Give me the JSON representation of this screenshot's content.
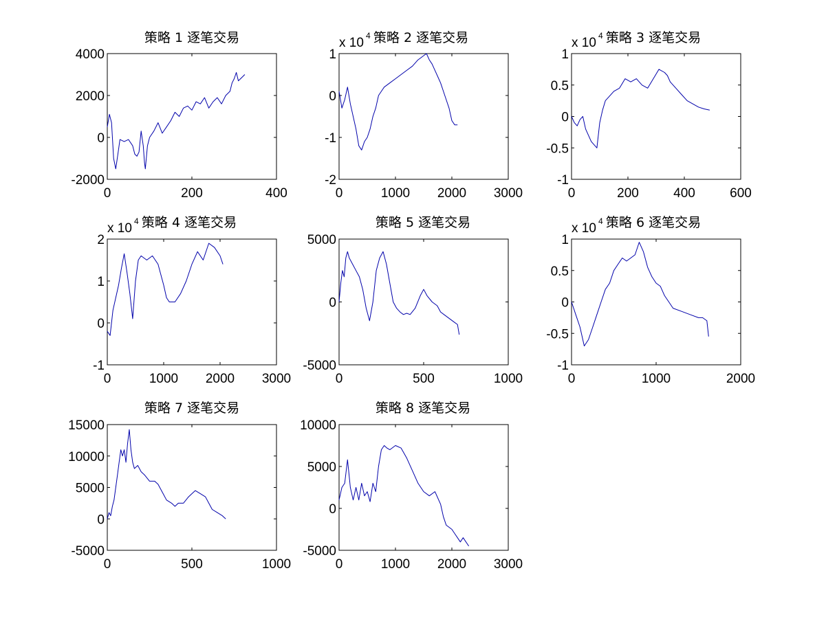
{
  "figure": {
    "background": "#ffffff"
  },
  "chart_data": [
    {
      "type": "line",
      "title": "策略 1 逐笔交易",
      "xlim": [
        0,
        400
      ],
      "ylim": [
        -2000,
        4000
      ],
      "xticks": [
        0,
        200,
        400
      ],
      "yticks": [
        -2000,
        0,
        2000,
        4000
      ],
      "xticklabels": [
        "0",
        "200",
        "400"
      ],
      "yticklabels": [
        "-2000",
        "0",
        "2000",
        "4000"
      ],
      "exponent": "",
      "color": "#0000aa",
      "series": [
        {
          "x": [
            0,
            5,
            10,
            15,
            20,
            25,
            30,
            40,
            50,
            60,
            65,
            70,
            75,
            80,
            85,
            88,
            90,
            95,
            100,
            110,
            120,
            130,
            140,
            150,
            160,
            170,
            180,
            190,
            200,
            210,
            220,
            230,
            240,
            250,
            260,
            270,
            280,
            290,
            295,
            300,
            305,
            310,
            315,
            320,
            325
          ],
          "y": [
            500,
            1100,
            700,
            -1000,
            -1500,
            -800,
            -100,
            -200,
            -100,
            -400,
            -800,
            -900,
            -700,
            300,
            -400,
            -1200,
            -1500,
            -400,
            0,
            300,
            700,
            200,
            500,
            800,
            1200,
            1000,
            1400,
            1500,
            1300,
            1700,
            1600,
            1900,
            1400,
            1700,
            1900,
            1600,
            2000,
            2200,
            2600,
            2800,
            3100,
            2700,
            2800,
            2900,
            3000
          ]
        }
      ]
    },
    {
      "type": "line",
      "title": "策略 2 逐笔交易",
      "xlim": [
        0,
        3000
      ],
      "ylim": [
        -2,
        1
      ],
      "xticks": [
        0,
        1000,
        2000,
        3000
      ],
      "yticks": [
        -2,
        -1,
        0,
        1
      ],
      "xticklabels": [
        "0",
        "1000",
        "2000",
        "3000"
      ],
      "yticklabels": [
        "-2",
        "-1",
        "0",
        "1"
      ],
      "exponent": "4",
      "color": "#0000aa",
      "series": [
        {
          "x": [
            0,
            50,
            100,
            150,
            200,
            250,
            300,
            350,
            400,
            450,
            500,
            550,
            600,
            650,
            700,
            750,
            800,
            900,
            1000,
            1100,
            1200,
            1300,
            1400,
            1450,
            1500,
            1550,
            1600,
            1650,
            1700,
            1750,
            1800,
            1850,
            1900,
            1950,
            2000,
            2050,
            2100
          ],
          "y": [
            0.1,
            -0.3,
            -0.1,
            0.2,
            -0.2,
            -0.5,
            -0.8,
            -1.2,
            -1.3,
            -1.1,
            -1.0,
            -0.8,
            -0.5,
            -0.3,
            0.0,
            0.1,
            0.2,
            0.3,
            0.4,
            0.5,
            0.6,
            0.7,
            0.85,
            0.9,
            0.95,
            1.0,
            0.85,
            0.75,
            0.6,
            0.45,
            0.3,
            0.1,
            -0.1,
            -0.3,
            -0.6,
            -0.7,
            -0.7
          ]
        }
      ]
    },
    {
      "type": "line",
      "title": "策略 3 逐笔交易",
      "xlim": [
        0,
        600
      ],
      "ylim": [
        -1,
        1
      ],
      "xticks": [
        0,
        200,
        400,
        600
      ],
      "yticks": [
        -1,
        -0.5,
        0,
        0.5,
        1
      ],
      "xticklabels": [
        "0",
        "200",
        "400",
        "600"
      ],
      "yticklabels": [
        "-1",
        "-0.5",
        "0",
        "0.5",
        "1"
      ],
      "exponent": "4",
      "color": "#0000aa",
      "series": [
        {
          "x": [
            0,
            10,
            20,
            30,
            40,
            50,
            60,
            70,
            80,
            90,
            100,
            110,
            120,
            130,
            150,
            170,
            190,
            210,
            230,
            250,
            270,
            290,
            310,
            330,
            340,
            350,
            370,
            390,
            410,
            430,
            450,
            470,
            490
          ],
          "y": [
            0.0,
            -0.1,
            -0.15,
            -0.05,
            0.0,
            -0.2,
            -0.3,
            -0.4,
            -0.45,
            -0.5,
            -0.1,
            0.1,
            0.25,
            0.3,
            0.4,
            0.45,
            0.6,
            0.55,
            0.6,
            0.5,
            0.45,
            0.6,
            0.75,
            0.7,
            0.65,
            0.55,
            0.45,
            0.35,
            0.25,
            0.2,
            0.15,
            0.12,
            0.1
          ]
        }
      ]
    },
    {
      "type": "line",
      "title": "策略 4 逐笔交易",
      "xlim": [
        0,
        3000
      ],
      "ylim": [
        -1,
        2
      ],
      "xticks": [
        0,
        1000,
        2000,
        3000
      ],
      "yticks": [
        -1,
        0,
        1,
        2
      ],
      "xticklabels": [
        "0",
        "1000",
        "2000",
        "3000"
      ],
      "yticklabels": [
        "-1",
        "0",
        "1",
        "2"
      ],
      "exponent": "4",
      "color": "#0000aa",
      "series": [
        {
          "x": [
            0,
            50,
            100,
            150,
            200,
            250,
            300,
            350,
            400,
            450,
            500,
            550,
            600,
            650,
            700,
            800,
            900,
            1000,
            1050,
            1100,
            1200,
            1300,
            1400,
            1500,
            1600,
            1700,
            1800,
            1900,
            2000,
            2050
          ],
          "y": [
            -0.2,
            -0.3,
            0.3,
            0.6,
            0.9,
            1.3,
            1.65,
            1.2,
            0.7,
            0.1,
            1.0,
            1.5,
            1.6,
            1.55,
            1.5,
            1.6,
            1.4,
            0.9,
            0.6,
            0.5,
            0.5,
            0.7,
            1.0,
            1.4,
            1.7,
            1.5,
            1.9,
            1.8,
            1.6,
            1.4
          ]
        }
      ]
    },
    {
      "type": "line",
      "title": "策略 5 逐笔交易",
      "xlim": [
        0,
        1000
      ],
      "ylim": [
        -5000,
        5000
      ],
      "xticks": [
        0,
        500,
        1000
      ],
      "yticks": [
        -5000,
        0,
        5000
      ],
      "xticklabels": [
        "0",
        "500",
        "1000"
      ],
      "yticklabels": [
        "-5000",
        "0",
        "5000"
      ],
      "exponent": "",
      "color": "#0000aa",
      "series": [
        {
          "x": [
            0,
            10,
            20,
            30,
            40,
            50,
            60,
            80,
            100,
            120,
            140,
            160,
            180,
            200,
            220,
            240,
            260,
            280,
            300,
            320,
            340,
            360,
            380,
            400,
            420,
            450,
            480,
            500,
            520,
            550,
            580,
            600,
            620,
            650,
            680,
            700,
            710
          ],
          "y": [
            0,
            1500,
            2500,
            2000,
            3500,
            4000,
            3500,
            3000,
            2500,
            2000,
            1000,
            -500,
            -1500,
            0,
            2500,
            3500,
            4000,
            3000,
            1500,
            0,
            -500,
            -800,
            -1000,
            -900,
            -1000,
            -500,
            500,
            1000,
            500,
            0,
            -300,
            -800,
            -1000,
            -1300,
            -1600,
            -1800,
            -2600
          ]
        }
      ]
    },
    {
      "type": "line",
      "title": "策略 6 逐笔交易",
      "xlim": [
        0,
        2000
      ],
      "ylim": [
        -1,
        1
      ],
      "xticks": [
        0,
        1000,
        2000
      ],
      "yticks": [
        -1,
        -0.5,
        0,
        0.5,
        1
      ],
      "xticklabels": [
        "0",
        "1000",
        "2000"
      ],
      "yticklabels": [
        "-1",
        "-0.5",
        "0",
        "0.5",
        "1"
      ],
      "exponent": "4",
      "color": "#0000aa",
      "series": [
        {
          "x": [
            0,
            50,
            100,
            150,
            200,
            250,
            300,
            350,
            400,
            450,
            500,
            550,
            600,
            650,
            700,
            750,
            800,
            850,
            900,
            950,
            1000,
            1050,
            1100,
            1150,
            1200,
            1300,
            1400,
            1500,
            1550,
            1600,
            1620
          ],
          "y": [
            0.0,
            -0.2,
            -0.4,
            -0.7,
            -0.6,
            -0.4,
            -0.2,
            0.0,
            0.2,
            0.3,
            0.5,
            0.6,
            0.7,
            0.65,
            0.7,
            0.75,
            0.95,
            0.8,
            0.55,
            0.4,
            0.3,
            0.25,
            0.1,
            0.0,
            -0.1,
            -0.15,
            -0.2,
            -0.25,
            -0.25,
            -0.3,
            -0.55
          ]
        }
      ]
    },
    {
      "type": "line",
      "title": "策略 7 逐笔交易",
      "xlim": [
        0,
        1000
      ],
      "ylim": [
        -5000,
        15000
      ],
      "xticks": [
        0,
        500,
        1000
      ],
      "yticks": [
        -5000,
        0,
        5000,
        10000,
        15000
      ],
      "xticklabels": [
        "0",
        "500",
        "1000"
      ],
      "yticklabels": [
        "-5000",
        "0",
        "5000",
        "10000",
        "15000"
      ],
      "exponent": "",
      "color": "#0000aa",
      "series": [
        {
          "x": [
            0,
            10,
            20,
            30,
            40,
            50,
            60,
            70,
            80,
            90,
            100,
            110,
            120,
            130,
            140,
            150,
            160,
            180,
            200,
            220,
            250,
            280,
            300,
            330,
            350,
            380,
            400,
            420,
            450,
            480,
            500,
            520,
            550,
            580,
            600,
            620,
            650,
            680,
            700
          ],
          "y": [
            0,
            1000,
            500,
            2000,
            3000,
            5000,
            7000,
            9000,
            11000,
            10000,
            11000,
            9000,
            12000,
            14200,
            11000,
            9000,
            8000,
            8500,
            7500,
            7000,
            6000,
            6000,
            5500,
            4000,
            3000,
            2500,
            2000,
            2500,
            2500,
            3500,
            4000,
            4500,
            4000,
            3500,
            2500,
            1500,
            1000,
            500,
            0
          ]
        }
      ]
    },
    {
      "type": "line",
      "title": "策略 8 逐笔交易",
      "xlim": [
        0,
        3000
      ],
      "ylim": [
        -5000,
        10000
      ],
      "xticks": [
        0,
        1000,
        2000,
        3000
      ],
      "yticks": [
        -5000,
        0,
        5000,
        10000
      ],
      "xticklabels": [
        "0",
        "1000",
        "2000",
        "3000"
      ],
      "yticklabels": [
        "-5000",
        "0",
        "5000",
        "10000"
      ],
      "exponent": "",
      "color": "#0000aa",
      "series": [
        {
          "x": [
            0,
            50,
            100,
            150,
            200,
            250,
            300,
            350,
            400,
            450,
            500,
            550,
            600,
            650,
            700,
            750,
            800,
            850,
            900,
            1000,
            1100,
            1200,
            1300,
            1400,
            1500,
            1600,
            1700,
            1800,
            1850,
            1900,
            2000,
            2050,
            2100,
            2150,
            2200,
            2250,
            2300
          ],
          "y": [
            1000,
            2500,
            3000,
            5800,
            2500,
            1000,
            2500,
            1000,
            3000,
            1500,
            2000,
            800,
            3000,
            2000,
            5000,
            7000,
            7500,
            7200,
            7000,
            7500,
            7200,
            6000,
            4500,
            3000,
            2000,
            1500,
            2000,
            500,
            -1000,
            -2000,
            -2500,
            -3000,
            -3500,
            -4000,
            -3500,
            -4000,
            -4500
          ]
        }
      ]
    }
  ]
}
